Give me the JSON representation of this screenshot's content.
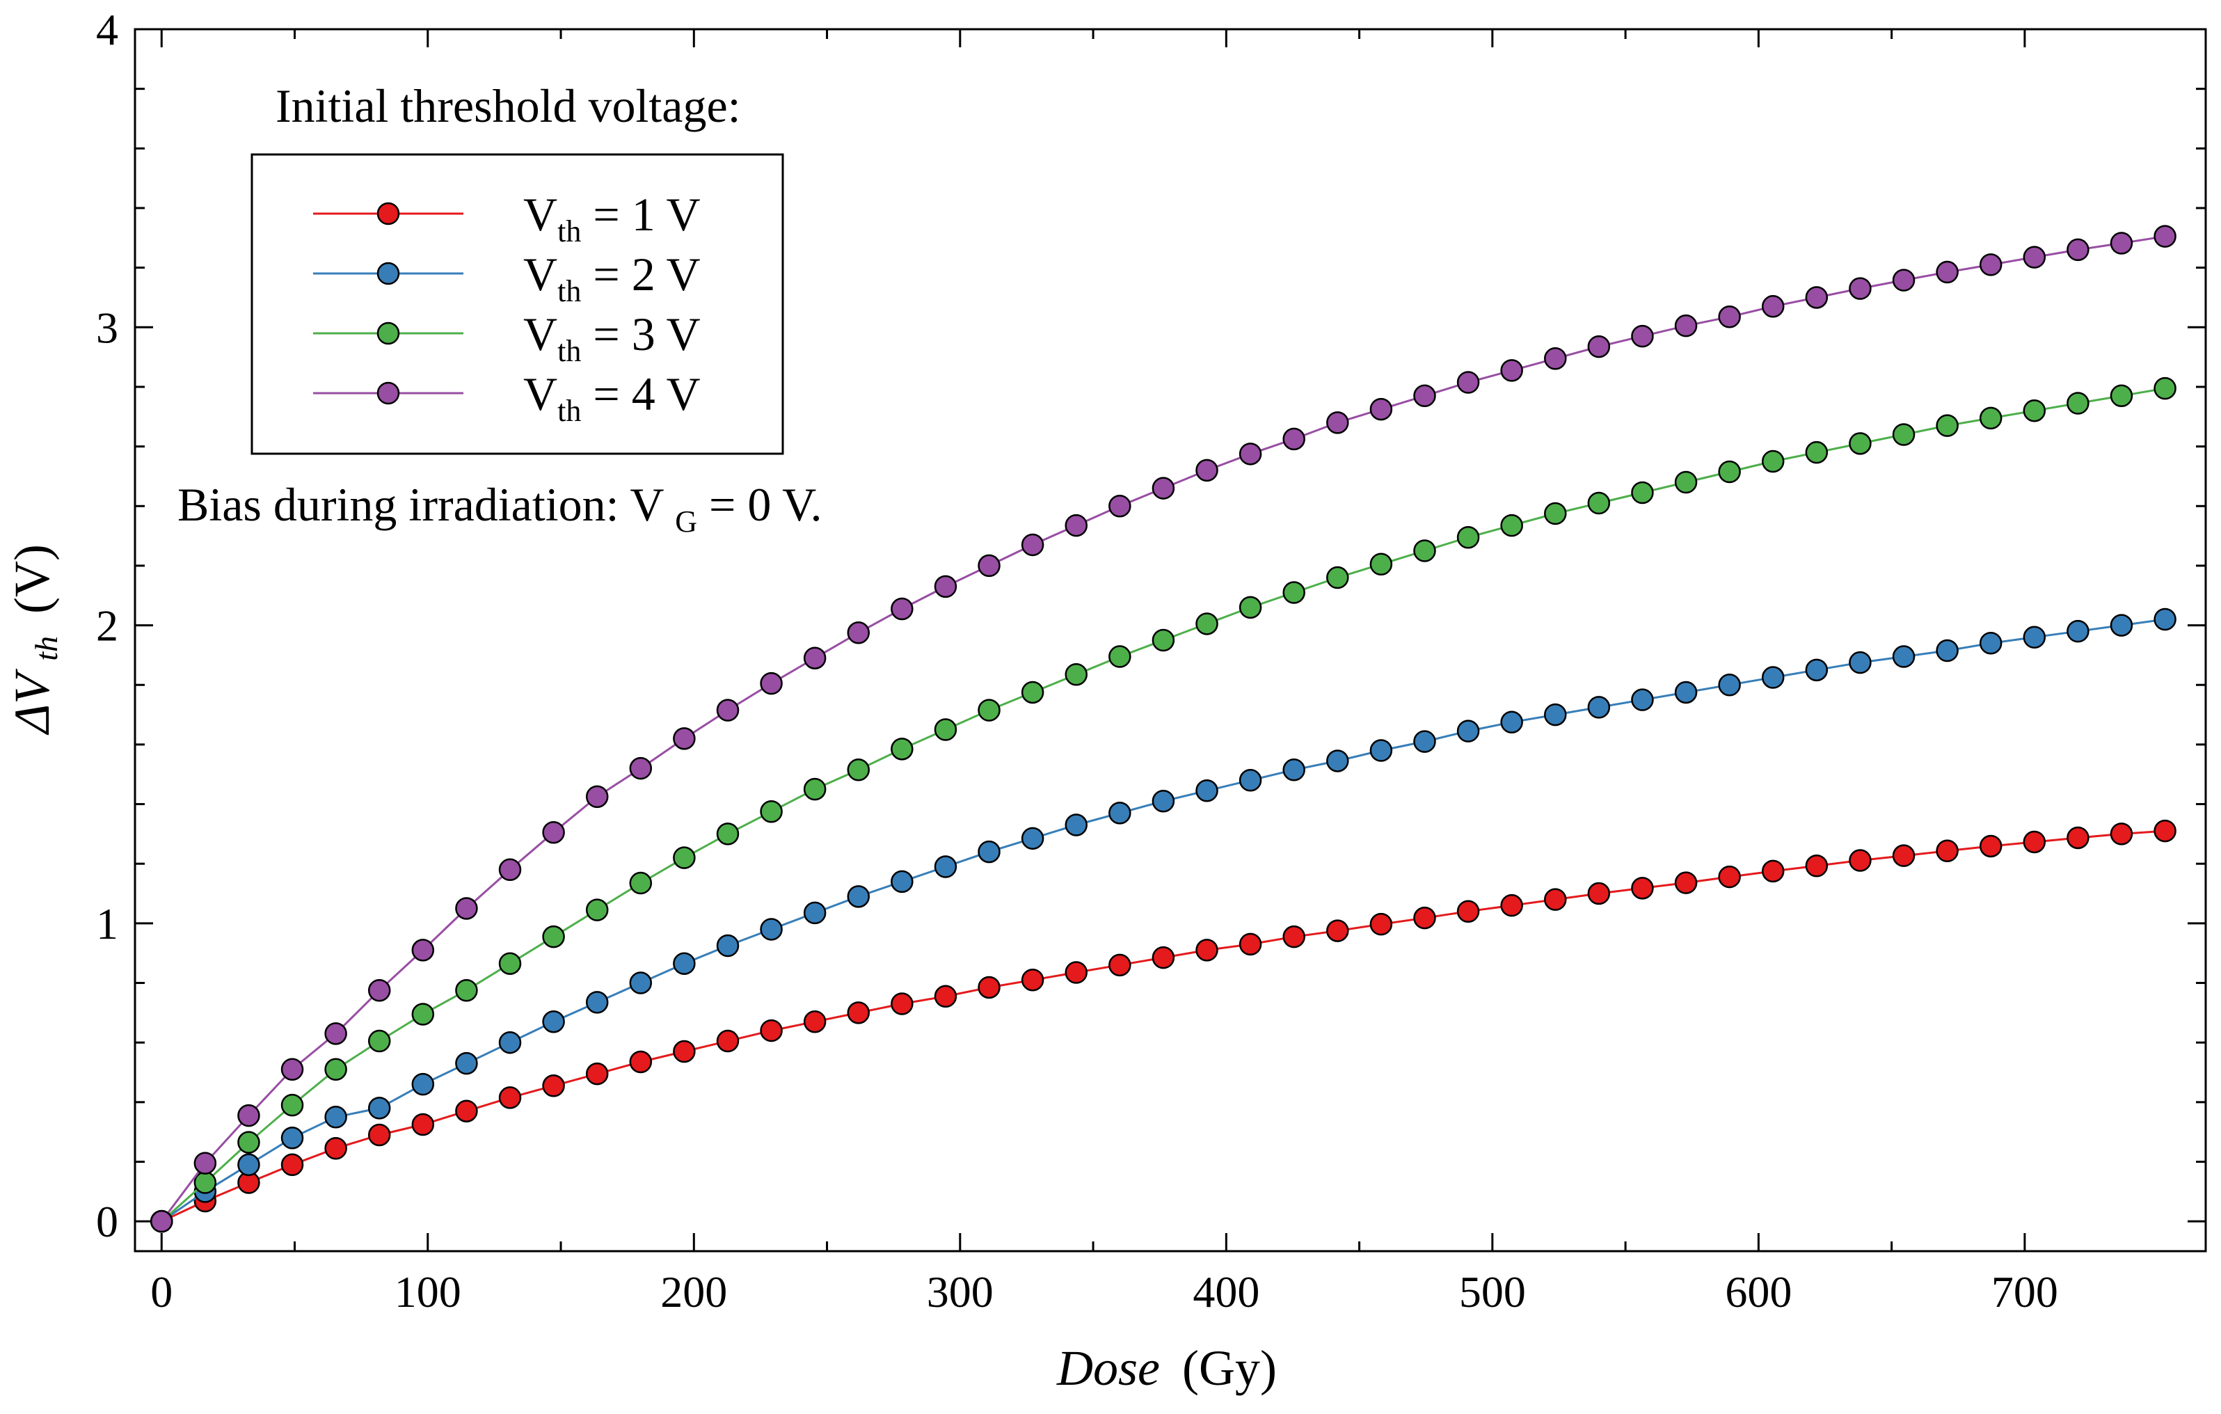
{
  "chart_data": {
    "type": "line",
    "xlabel": {
      "italic": "Dose",
      "unit": "(Gy)"
    },
    "ylabel": {
      "italic": "ΔV",
      "sub": "th",
      "unit": "(V)"
    },
    "xlim": [
      -10,
      768
    ],
    "ylim": [
      -0.1,
      4
    ],
    "xticks": [
      0,
      100,
      200,
      300,
      400,
      500,
      600,
      700
    ],
    "yticks": [
      0,
      1,
      2,
      3,
      4
    ],
    "grid": false,
    "legend_title": "Initial threshold voltage:",
    "legend_position": "top-left",
    "annotation": {
      "text": "Bias during irradiation: V",
      "sub": "G",
      "tail": " = 0 V."
    },
    "x": [
      0,
      16.36,
      32.73,
      49.09,
      65.45,
      81.82,
      98.18,
      114.55,
      130.91,
      147.27,
      163.64,
      180,
      196.36,
      212.73,
      229.09,
      245.45,
      261.82,
      278.18,
      294.55,
      310.91,
      327.27,
      343.64,
      360,
      376.36,
      392.73,
      409.09,
      425.45,
      441.82,
      458.18,
      474.55,
      490.91,
      507.27,
      523.64,
      540,
      556.36,
      572.73,
      589.09,
      605.45,
      621.82,
      638.18,
      654.55,
      670.91,
      687.27,
      703.64,
      720,
      736.36,
      752.73
    ],
    "series": [
      {
        "name": "V|th| = 1 V",
        "color": "#e41a1c",
        "values": [
          0,
          0.068,
          0.13,
          0.19,
          0.245,
          0.29,
          0.325,
          0.37,
          0.415,
          0.455,
          0.495,
          0.535,
          0.57,
          0.605,
          0.64,
          0.67,
          0.7,
          0.73,
          0.755,
          0.785,
          0.81,
          0.835,
          0.86,
          0.885,
          0.91,
          0.93,
          0.955,
          0.975,
          0.997,
          1.018,
          1.04,
          1.06,
          1.08,
          1.1,
          1.118,
          1.136,
          1.156,
          1.175,
          1.193,
          1.211,
          1.227,
          1.243,
          1.259,
          1.273,
          1.287,
          1.3,
          1.31
        ]
      },
      {
        "name": "V|th| = 2 V",
        "color": "#377eb8",
        "values": [
          0,
          0.1,
          0.19,
          0.28,
          0.35,
          0.38,
          0.46,
          0.53,
          0.6,
          0.67,
          0.735,
          0.8,
          0.865,
          0.925,
          0.98,
          1.035,
          1.09,
          1.14,
          1.19,
          1.24,
          1.285,
          1.33,
          1.37,
          1.41,
          1.445,
          1.48,
          1.515,
          1.545,
          1.58,
          1.61,
          1.645,
          1.675,
          1.7,
          1.725,
          1.75,
          1.775,
          1.8,
          1.825,
          1.85,
          1.875,
          1.895,
          1.915,
          1.94,
          1.96,
          1.98,
          2.0,
          2.02
        ]
      },
      {
        "name": "V|th| = 3 V",
        "color": "#4daf4a",
        "values": [
          0,
          0.13,
          0.265,
          0.39,
          0.51,
          0.605,
          0.695,
          0.775,
          0.865,
          0.955,
          1.045,
          1.135,
          1.22,
          1.3,
          1.375,
          1.45,
          1.515,
          1.585,
          1.65,
          1.715,
          1.775,
          1.835,
          1.895,
          1.95,
          2.005,
          2.06,
          2.11,
          2.16,
          2.205,
          2.25,
          2.295,
          2.335,
          2.375,
          2.41,
          2.445,
          2.48,
          2.515,
          2.55,
          2.58,
          2.61,
          2.64,
          2.67,
          2.695,
          2.72,
          2.745,
          2.77,
          2.795
        ]
      },
      {
        "name": "V|th| = 4 V",
        "color": "#984ea3",
        "values": [
          0,
          0.195,
          0.355,
          0.51,
          0.63,
          0.775,
          0.91,
          1.05,
          1.18,
          1.305,
          1.425,
          1.52,
          1.62,
          1.715,
          1.805,
          1.89,
          1.975,
          2.055,
          2.13,
          2.2,
          2.27,
          2.335,
          2.4,
          2.46,
          2.52,
          2.575,
          2.625,
          2.68,
          2.725,
          2.77,
          2.815,
          2.855,
          2.895,
          2.935,
          2.97,
          3.005,
          3.035,
          3.07,
          3.1,
          3.13,
          3.158,
          3.185,
          3.21,
          3.235,
          3.26,
          3.282,
          3.305
        ]
      }
    ]
  }
}
